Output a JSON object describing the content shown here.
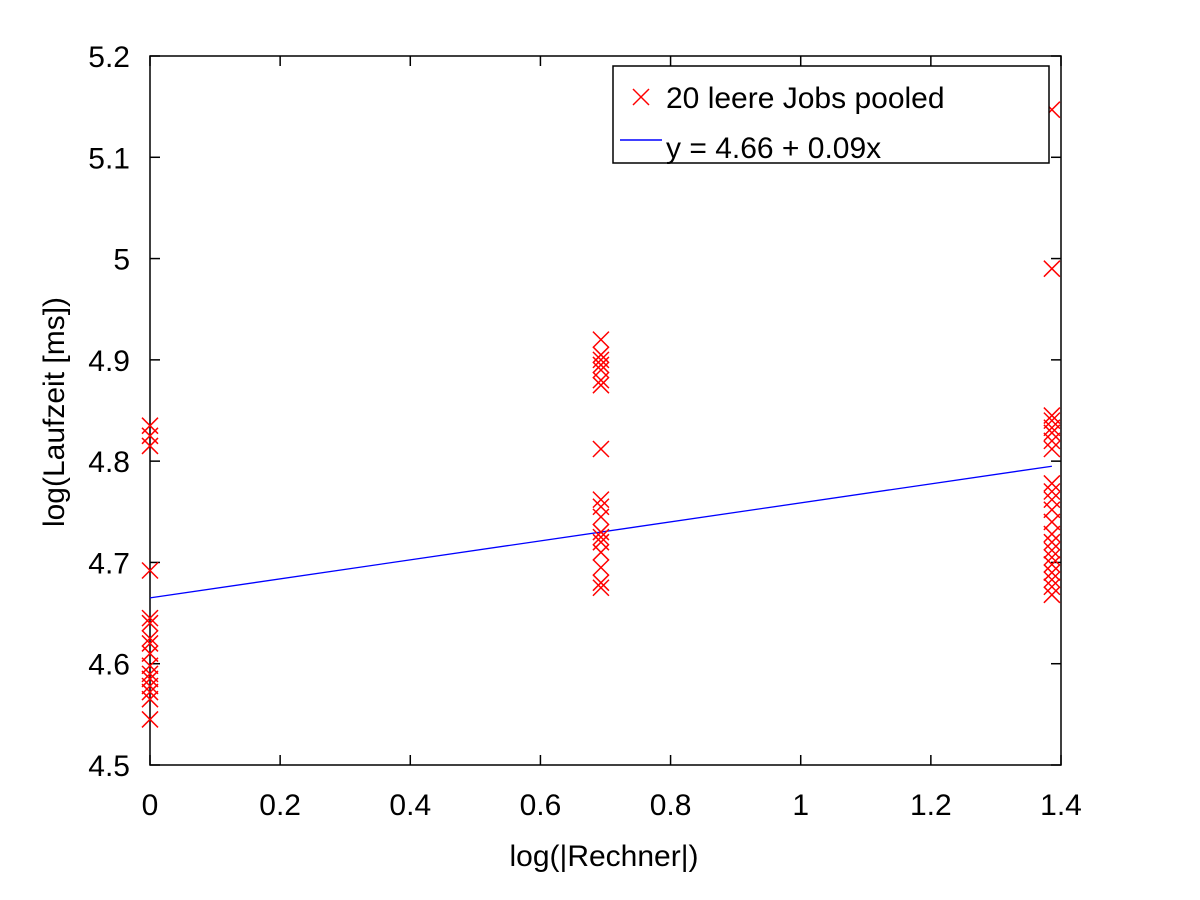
{
  "chart_data": {
    "type": "scatter",
    "title": "",
    "xlabel": "log(|Rechner|)",
    "ylabel": "log(Laufzeit [ms])",
    "xlim": [
      0,
      1.4
    ],
    "ylim": [
      4.5,
      5.2
    ],
    "xticks": [
      "0",
      "0.2",
      "0.4",
      "0.6",
      "0.8",
      "1",
      "1.2",
      "1.4"
    ],
    "yticks": [
      "4.5",
      "4.6",
      "4.7",
      "4.8",
      "4.9",
      "5",
      "5.1",
      "5.2"
    ],
    "grid": false,
    "legend_position": "top-right",
    "colors": {
      "points": "#ff0000",
      "fit": "#0000ff",
      "axes": "#000000"
    },
    "series": [
      {
        "name": "20 leere Jobs pooled",
        "marker": "x",
        "points": [
          [
            0,
            4.835
          ],
          [
            0,
            4.825
          ],
          [
            0,
            4.815
          ],
          [
            0,
            4.692
          ],
          [
            0,
            4.645
          ],
          [
            0,
            4.64
          ],
          [
            0,
            4.625
          ],
          [
            0,
            4.62
          ],
          [
            0,
            4.61
          ],
          [
            0,
            4.598
          ],
          [
            0,
            4.59
          ],
          [
            0,
            4.585
          ],
          [
            0,
            4.578
          ],
          [
            0,
            4.572
          ],
          [
            0,
            4.565
          ],
          [
            0,
            4.545
          ],
          [
            0.693,
            4.92
          ],
          [
            0.693,
            4.905
          ],
          [
            0.693,
            4.9
          ],
          [
            0.693,
            4.895
          ],
          [
            0.693,
            4.89
          ],
          [
            0.693,
            4.88
          ],
          [
            0.693,
            4.875
          ],
          [
            0.693,
            4.812
          ],
          [
            0.693,
            4.762
          ],
          [
            0.693,
            4.755
          ],
          [
            0.693,
            4.745
          ],
          [
            0.693,
            4.73
          ],
          [
            0.693,
            4.725
          ],
          [
            0.693,
            4.72
          ],
          [
            0.693,
            4.71
          ],
          [
            0.693,
            4.695
          ],
          [
            0.693,
            4.68
          ],
          [
            0.693,
            4.675
          ],
          [
            1.386,
            5.147
          ],
          [
            1.386,
            4.99
          ],
          [
            1.386,
            4.845
          ],
          [
            1.386,
            4.84
          ],
          [
            1.386,
            4.833
          ],
          [
            1.386,
            4.828
          ],
          [
            1.386,
            4.82
          ],
          [
            1.386,
            4.812
          ],
          [
            1.386,
            4.778
          ],
          [
            1.386,
            4.77
          ],
          [
            1.386,
            4.762
          ],
          [
            1.386,
            4.752
          ],
          [
            1.386,
            4.74
          ],
          [
            1.386,
            4.728
          ],
          [
            1.386,
            4.72
          ],
          [
            1.386,
            4.712
          ],
          [
            1.386,
            4.705
          ],
          [
            1.386,
            4.698
          ],
          [
            1.386,
            4.69
          ],
          [
            1.386,
            4.683
          ],
          [
            1.386,
            4.676
          ],
          [
            1.386,
            4.668
          ]
        ]
      },
      {
        "name": "y = 4.66 + 0.09x",
        "type": "line",
        "points": [
          [
            0,
            4.665
          ],
          [
            1.386,
            4.795
          ]
        ]
      }
    ]
  }
}
